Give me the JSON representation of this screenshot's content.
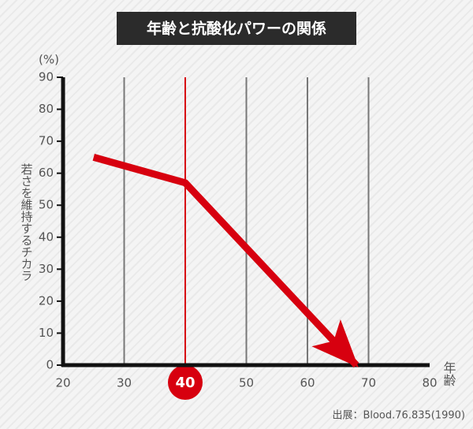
{
  "chart_data": {
    "type": "line",
    "title": "年齢と抗酸化パワーの関係",
    "y_label": "若さを維持するチカラ",
    "y_unit": "(%)",
    "x_label": "年齢",
    "source": "出展：Blood.76.835(1990)",
    "x": [
      25,
      40,
      68
    ],
    "series": [
      {
        "values": [
          65,
          57,
          0
        ],
        "color": "#d7000f"
      }
    ],
    "xlim": [
      20,
      80
    ],
    "xticks": [
      20,
      30,
      40,
      50,
      60,
      70,
      80
    ],
    "ylim": [
      0,
      90
    ],
    "yticks": [
      0,
      10,
      20,
      30,
      40,
      50,
      60,
      70,
      80,
      90
    ],
    "highlight_x": 40,
    "grid": "x"
  }
}
